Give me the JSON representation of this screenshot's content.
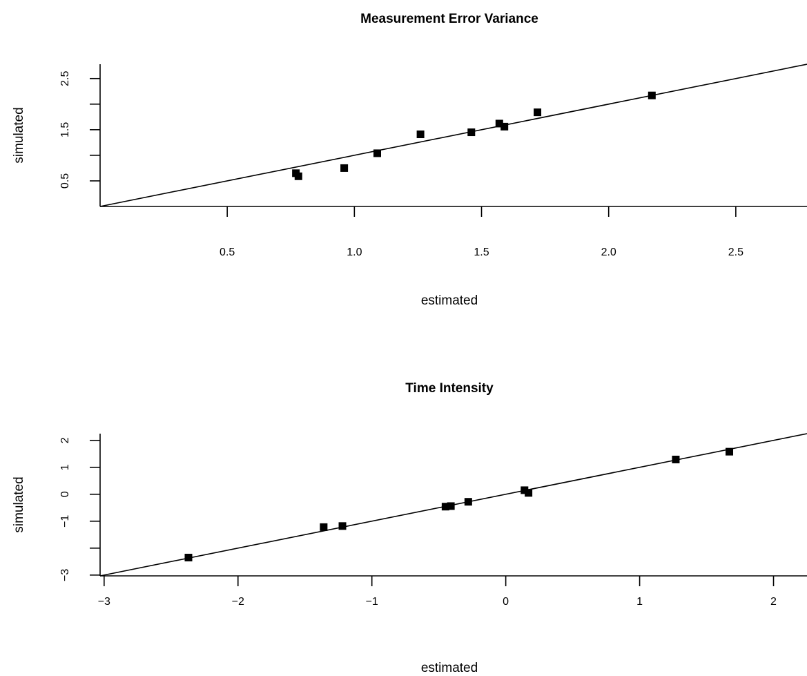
{
  "chart_data": [
    {
      "type": "scatter",
      "title": "Measurement Error Variance",
      "xlabel": "estimated",
      "ylabel": "simulated",
      "xlim": [
        0.0,
        2.78
      ],
      "ylim": [
        0.0,
        2.78
      ],
      "x_ticks": [
        0.5,
        1.0,
        1.5,
        2.0,
        2.5
      ],
      "x_tick_labels": [
        "0.5",
        "1.0",
        "1.5",
        "2.0",
        "2.5"
      ],
      "y_ticks": [
        0.5,
        1.0,
        1.5,
        2.0,
        2.5
      ],
      "y_tick_labels": [
        "0.5",
        "",
        "1.5",
        "",
        "2.5"
      ],
      "reference_line": {
        "intercept": 0,
        "slope": 1
      },
      "grid": false,
      "marker": "filled-square",
      "color": "#000000",
      "points": [
        {
          "x": 0.77,
          "y": 0.65
        },
        {
          "x": 0.78,
          "y": 0.59
        },
        {
          "x": 0.96,
          "y": 0.75
        },
        {
          "x": 1.09,
          "y": 1.04
        },
        {
          "x": 1.26,
          "y": 1.41
        },
        {
          "x": 1.46,
          "y": 1.45
        },
        {
          "x": 1.57,
          "y": 1.62
        },
        {
          "x": 1.59,
          "y": 1.56
        },
        {
          "x": 1.72,
          "y": 1.84
        },
        {
          "x": 2.17,
          "y": 2.17
        }
      ]
    },
    {
      "type": "scatter",
      "title": "Time Intensity",
      "xlabel": "estimated",
      "ylabel": "simulated",
      "xlim": [
        -3.03,
        2.25
      ],
      "ylim": [
        -3.03,
        2.25
      ],
      "x_ticks": [
        -3,
        -2,
        -1,
        0,
        1,
        2
      ],
      "x_tick_labels": [
        "−3",
        "−2",
        "−1",
        "0",
        "1",
        "2"
      ],
      "y_ticks": [
        -3,
        -2,
        -1,
        0,
        1,
        2
      ],
      "y_tick_labels": [
        "−3",
        "",
        "−1",
        "0",
        "1",
        "2"
      ],
      "reference_line": {
        "intercept": 0,
        "slope": 1
      },
      "grid": false,
      "marker": "filled-square",
      "color": "#000000",
      "points": [
        {
          "x": -2.37,
          "y": -2.35
        },
        {
          "x": -1.36,
          "y": -1.22
        },
        {
          "x": -1.22,
          "y": -1.18
        },
        {
          "x": -0.45,
          "y": -0.46
        },
        {
          "x": -0.41,
          "y": -0.44
        },
        {
          "x": -0.28,
          "y": -0.28
        },
        {
          "x": 0.14,
          "y": 0.15
        },
        {
          "x": 0.17,
          "y": 0.05
        },
        {
          "x": 1.27,
          "y": 1.29
        },
        {
          "x": 1.67,
          "y": 1.58
        }
      ]
    }
  ]
}
